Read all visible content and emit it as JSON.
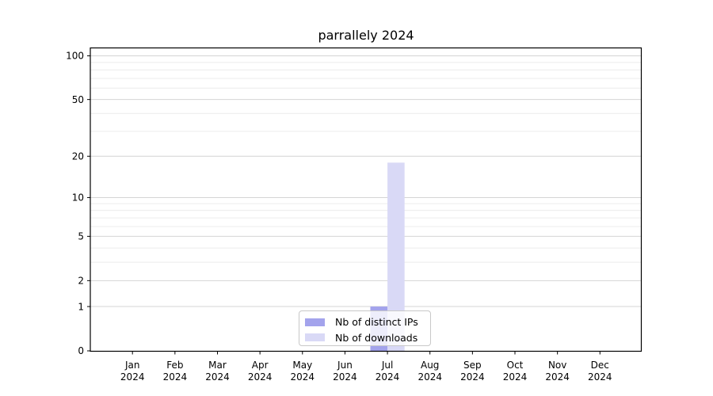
{
  "chart_data": {
    "type": "bar",
    "title": "parrallely 2024",
    "categories": [
      "Jan",
      "Feb",
      "Mar",
      "Apr",
      "May",
      "Jun",
      "Jul",
      "Aug",
      "Sep",
      "Oct",
      "Nov",
      "Dec"
    ],
    "category_year": "2024",
    "series": [
      {
        "name": "Nb of distinct IPs",
        "color": "#a3a3ec",
        "values": [
          0,
          0,
          0,
          0,
          0,
          0,
          1,
          0,
          0,
          0,
          0,
          0
        ]
      },
      {
        "name": "Nb of downloads",
        "color": "#d9d9f6",
        "values": [
          0,
          0,
          0,
          0,
          0,
          0,
          18,
          0,
          0,
          0,
          0,
          0
        ]
      }
    ],
    "yscale": "log1p",
    "yticks": [
      0,
      1,
      2,
      5,
      10,
      20,
      50,
      100
    ],
    "minor_yticks": [
      3,
      4,
      6,
      7,
      8,
      9,
      30,
      40,
      60,
      70,
      80,
      90
    ],
    "ylim": [
      0,
      114
    ],
    "xlabel": "",
    "ylabel": "",
    "grid": "horizontal",
    "legend_position": "lower center"
  }
}
